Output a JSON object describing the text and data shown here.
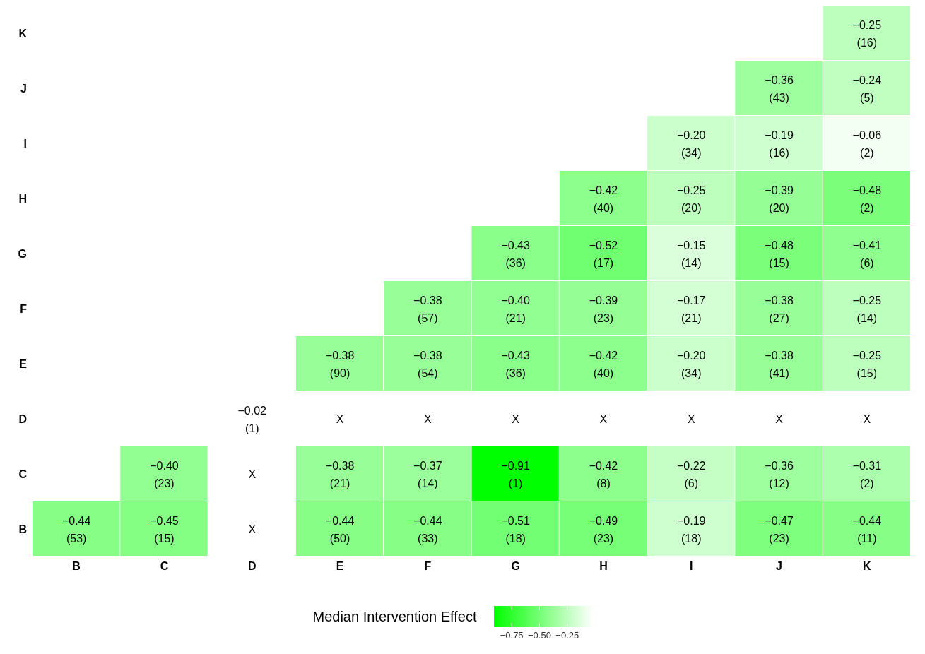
{
  "chart_data": {
    "type": "heatmap",
    "categories": [
      "B",
      "C",
      "D",
      "E",
      "F",
      "G",
      "H",
      "I",
      "J",
      "K"
    ],
    "y_categories": [
      "K",
      "J",
      "I",
      "H",
      "G",
      "F",
      "E",
      "D",
      "C",
      "B"
    ],
    "cells": [
      [
        null,
        null,
        null,
        null,
        null,
        null,
        null,
        null,
        null,
        -0.25
      ],
      [
        null,
        null,
        null,
        null,
        null,
        null,
        null,
        null,
        -0.36,
        -0.24
      ],
      [
        null,
        null,
        null,
        null,
        null,
        null,
        null,
        -0.2,
        -0.19,
        -0.06
      ],
      [
        null,
        null,
        null,
        null,
        null,
        null,
        -0.42,
        -0.25,
        -0.39,
        -0.48
      ],
      [
        null,
        null,
        null,
        null,
        null,
        -0.43,
        -0.52,
        -0.15,
        -0.48,
        -0.41
      ],
      [
        null,
        null,
        null,
        null,
        -0.38,
        -0.4,
        -0.39,
        -0.17,
        -0.38,
        -0.25
      ],
      [
        null,
        null,
        null,
        -0.38,
        -0.38,
        -0.43,
        -0.42,
        -0.2,
        -0.38,
        -0.25
      ],
      [
        null,
        null,
        -0.02,
        null,
        null,
        null,
        null,
        null,
        null,
        null
      ],
      [
        null,
        -0.4,
        null,
        -0.38,
        -0.37,
        -0.91,
        -0.42,
        -0.22,
        -0.36,
        -0.31
      ],
      [
        -0.44,
        -0.45,
        null,
        -0.44,
        -0.44,
        -0.51,
        -0.49,
        -0.19,
        -0.47,
        -0.44
      ]
    ],
    "cell_labels": [
      [
        null,
        null,
        null,
        null,
        null,
        null,
        null,
        null,
        null,
        "−0.25\n(16)"
      ],
      [
        null,
        null,
        null,
        null,
        null,
        null,
        null,
        null,
        "−0.36\n(43)",
        "−0.24\n(5)"
      ],
      [
        null,
        null,
        null,
        null,
        null,
        null,
        null,
        "−0.20\n(34)",
        "−0.19\n(16)",
        "−0.06\n(2)"
      ],
      [
        null,
        null,
        null,
        null,
        null,
        null,
        "−0.42\n(40)",
        "−0.25\n(20)",
        "−0.39\n(20)",
        "−0.48\n(2)"
      ],
      [
        null,
        null,
        null,
        null,
        null,
        "−0.43\n(36)",
        "−0.52\n(17)",
        "−0.15\n(14)",
        "−0.48\n(15)",
        "−0.41\n(6)"
      ],
      [
        null,
        null,
        null,
        null,
        "−0.38\n(57)",
        "−0.40\n(21)",
        "−0.39\n(23)",
        "−0.17\n(21)",
        "−0.38\n(27)",
        "−0.25\n(14)"
      ],
      [
        null,
        null,
        null,
        "−0.38\n(90)",
        "−0.38\n(54)",
        "−0.43\n(36)",
        "−0.42\n(40)",
        "−0.20\n(34)",
        "−0.38\n(41)",
        "−0.25\n(15)"
      ],
      [
        null,
        null,
        "−0.02\n(1)",
        "X",
        "X",
        "X",
        "X",
        "X",
        "X",
        "X"
      ],
      [
        null,
        "−0.40\n(23)",
        "X",
        "−0.38\n(21)",
        "−0.37\n(14)",
        "−0.91\n(1)",
        "−0.42\n(8)",
        "−0.22\n(6)",
        "−0.36\n(12)",
        "−0.31\n(2)"
      ],
      [
        "−0.44\n(53)",
        "−0.45\n(15)",
        "X",
        "−0.44\n(50)",
        "−0.44\n(33)",
        "−0.51\n(18)",
        "−0.49\n(23)",
        "−0.19\n(18)",
        "−0.47\n(23)",
        "−0.44\n(11)"
      ]
    ],
    "colors": [
      "#00ff00",
      "#ffffff"
    ],
    "clim": [
      -0.91,
      -0.02
    ],
    "cticks": [
      {
        "value": -0.75,
        "label": "−0.75"
      },
      {
        "value": -0.5,
        "label": "−0.50"
      },
      {
        "value": -0.25,
        "label": "−0.25"
      }
    ],
    "clabel": "Median Intervention Effect"
  }
}
